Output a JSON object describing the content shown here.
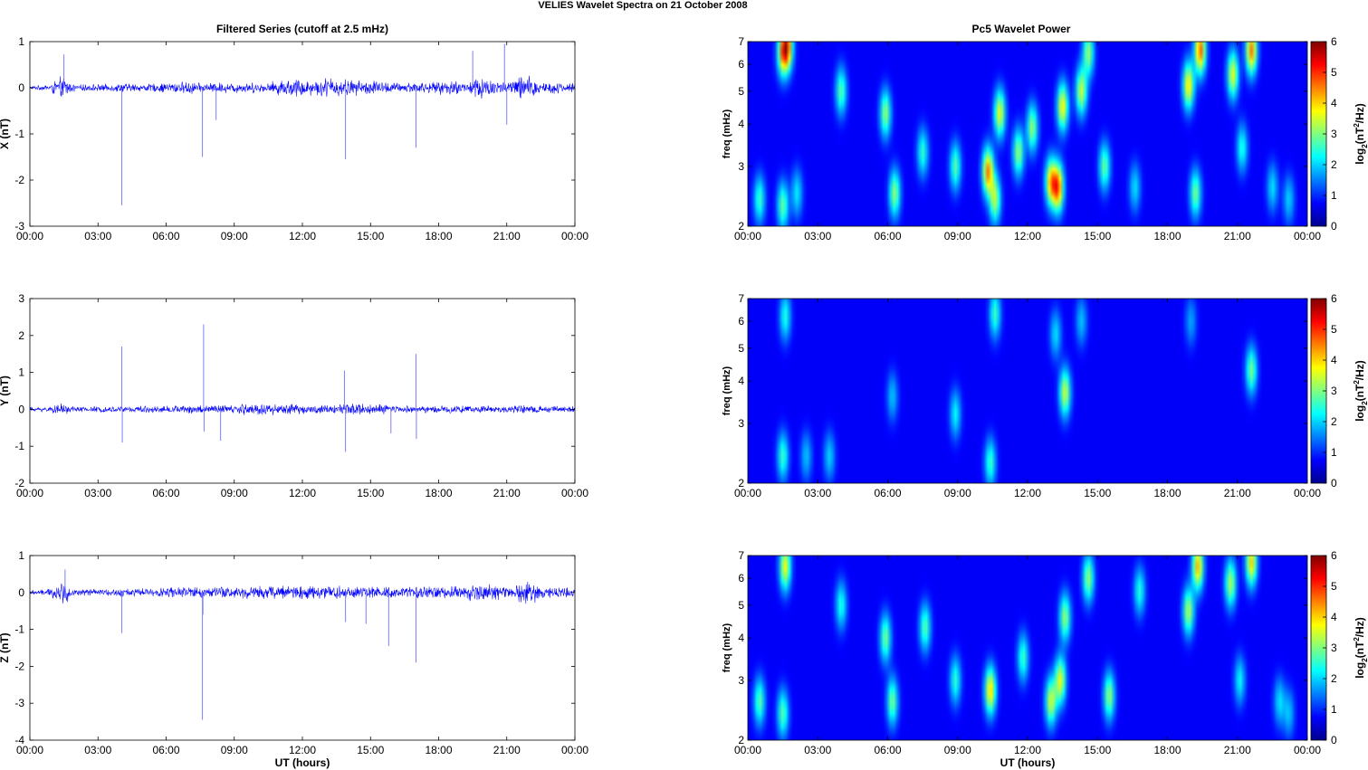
{
  "figure": {
    "suptitle": "VELIES Wavelet Spectra on 21 October   2008",
    "left_title": "Filtered Series (cutoff at 2.5 mHz)",
    "right_title": "Pc5 Wavelet Power"
  },
  "chart_data": [
    {
      "type": "line",
      "component": "X",
      "ylabel": "X (nT)",
      "xlabel": "",
      "xlim": [
        0,
        24
      ],
      "ylim": [
        -3,
        1
      ],
      "yticks": [
        -3,
        -2,
        -1,
        0,
        1
      ],
      "xticks": [
        "00:00",
        "03:00",
        "06:00",
        "09:00",
        "12:00",
        "15:00",
        "18:00",
        "21:00",
        "00:00"
      ],
      "line_color": "#0000ff",
      "noise_amplitude": [
        0.03,
        0.04,
        0.06,
        0.12,
        0.18,
        0.08,
        0.05,
        0.06,
        0.06,
        0.06,
        0.06,
        0.07,
        0.08,
        0.07,
        0.06,
        0.07,
        0.07,
        0.08,
        0.1,
        0.1,
        0.1,
        0.12,
        0.08,
        0.08,
        0.09,
        0.09,
        0.08,
        0.1,
        0.09,
        0.09,
        0.08,
        0.08,
        0.12,
        0.14,
        0.15,
        0.16,
        0.15,
        0.13,
        0.14,
        0.18,
        0.16,
        0.15,
        0.14,
        0.13,
        0.12,
        0.14,
        0.1,
        0.1,
        0.09,
        0.09,
        0.1,
        0.1,
        0.09,
        0.09,
        0.11,
        0.14,
        0.12,
        0.09,
        0.18,
        0.25,
        0.16,
        0.15,
        0.1,
        0.12,
        0.22,
        0.2,
        0.18,
        0.12,
        0.1,
        0.1,
        0.08,
        0.08
      ],
      "spikes": [
        {
          "t": 4.05,
          "v": -2.55
        },
        {
          "t": 7.6,
          "v": -1.5
        },
        {
          "t": 8.2,
          "v": -0.7
        },
        {
          "t": 13.9,
          "v": -1.55
        },
        {
          "t": 17.0,
          "v": -1.3
        },
        {
          "t": 1.5,
          "v": 0.72
        },
        {
          "t": 20.9,
          "v": 0.95
        },
        {
          "t": 21.0,
          "v": -0.8
        },
        {
          "t": 19.5,
          "v": 0.8
        }
      ]
    },
    {
      "type": "line",
      "component": "Y",
      "ylabel": "Y (nT)",
      "xlabel": "",
      "xlim": [
        0,
        24
      ],
      "ylim": [
        -2,
        3
      ],
      "yticks": [
        -2,
        -1,
        0,
        1,
        2,
        3
      ],
      "xticks": [
        "00:00",
        "03:00",
        "06:00",
        "09:00",
        "12:00",
        "15:00",
        "18:00",
        "21:00",
        "00:00"
      ],
      "line_color": "#0000ff",
      "noise_amplitude": [
        0.05,
        0.05,
        0.06,
        0.09,
        0.12,
        0.07,
        0.06,
        0.06,
        0.06,
        0.06,
        0.06,
        0.06,
        0.07,
        0.07,
        0.07,
        0.07,
        0.07,
        0.07,
        0.08,
        0.08,
        0.08,
        0.09,
        0.09,
        0.1,
        0.1,
        0.1,
        0.1,
        0.11,
        0.12,
        0.13,
        0.14,
        0.13,
        0.12,
        0.12,
        0.11,
        0.1,
        0.1,
        0.1,
        0.1,
        0.1,
        0.11,
        0.12,
        0.12,
        0.13,
        0.12,
        0.11,
        0.1,
        0.09,
        0.09,
        0.09,
        0.09,
        0.08,
        0.08,
        0.08,
        0.08,
        0.08,
        0.08,
        0.08,
        0.08,
        0.08,
        0.07,
        0.07,
        0.07,
        0.07,
        0.08,
        0.08,
        0.08,
        0.08,
        0.07,
        0.07,
        0.07,
        0.07
      ],
      "spikes": [
        {
          "t": 4.05,
          "v": 1.7
        },
        {
          "t": 4.07,
          "v": -0.9
        },
        {
          "t": 7.65,
          "v": 2.3
        },
        {
          "t": 7.67,
          "v": -0.6
        },
        {
          "t": 8.4,
          "v": -0.85
        },
        {
          "t": 13.85,
          "v": 1.05
        },
        {
          "t": 13.9,
          "v": -1.15
        },
        {
          "t": 17.0,
          "v": 1.5
        },
        {
          "t": 17.02,
          "v": -0.8
        },
        {
          "t": 15.9,
          "v": -0.65
        }
      ]
    },
    {
      "type": "line",
      "component": "Z",
      "ylabel": "Z (nT)",
      "xlabel": "UT (hours)",
      "xlim": [
        0,
        24
      ],
      "ylim": [
        -4,
        1
      ],
      "yticks": [
        -4,
        -3,
        -2,
        -1,
        0,
        1
      ],
      "xticks": [
        "00:00",
        "03:00",
        "06:00",
        "09:00",
        "12:00",
        "15:00",
        "18:00",
        "21:00",
        "00:00"
      ],
      "line_color": "#0000ff",
      "noise_amplitude": [
        0.05,
        0.06,
        0.08,
        0.16,
        0.22,
        0.1,
        0.07,
        0.07,
        0.07,
        0.07,
        0.07,
        0.08,
        0.09,
        0.09,
        0.08,
        0.09,
        0.09,
        0.1,
        0.11,
        0.11,
        0.12,
        0.13,
        0.12,
        0.12,
        0.13,
        0.13,
        0.12,
        0.14,
        0.15,
        0.15,
        0.14,
        0.13,
        0.15,
        0.16,
        0.16,
        0.17,
        0.16,
        0.15,
        0.15,
        0.17,
        0.16,
        0.14,
        0.13,
        0.12,
        0.12,
        0.12,
        0.11,
        0.11,
        0.1,
        0.1,
        0.11,
        0.12,
        0.13,
        0.13,
        0.12,
        0.14,
        0.13,
        0.12,
        0.18,
        0.24,
        0.18,
        0.16,
        0.12,
        0.14,
        0.22,
        0.24,
        0.2,
        0.16,
        0.13,
        0.12,
        0.11,
        0.1
      ],
      "spikes": [
        {
          "t": 4.05,
          "v": -1.1
        },
        {
          "t": 7.6,
          "v": -3.45
        },
        {
          "t": 7.62,
          "v": -0.6
        },
        {
          "t": 13.9,
          "v": -0.8
        },
        {
          "t": 14.8,
          "v": -0.85
        },
        {
          "t": 15.8,
          "v": -1.45
        },
        {
          "t": 17.0,
          "v": -1.9
        },
        {
          "t": 1.55,
          "v": 0.62
        }
      ]
    },
    {
      "type": "heatmap",
      "component": "X",
      "ylabel": "freq (mHz)",
      "xlabel": "",
      "colorbar_label": "log2(nT2/Hz)",
      "yscale": "log",
      "xlim": [
        0,
        24
      ],
      "ylim": [
        2,
        7
      ],
      "yticks": [
        2,
        3,
        4,
        5,
        6,
        7
      ],
      "clim": [
        0,
        6
      ],
      "cticks": [
        0,
        1,
        2,
        3,
        4,
        5,
        6
      ],
      "xticks": [
        "00:00",
        "03:00",
        "06:00",
        "09:00",
        "12:00",
        "15:00",
        "18:00",
        "21:00",
        "00:00"
      ],
      "blobs": [
        {
          "t": 0.5,
          "f": 2.4,
          "p": 2.0
        },
        {
          "t": 1.5,
          "f": 2.3,
          "p": 2.3
        },
        {
          "t": 1.5,
          "f": 6.5,
          "p": 3.5
        },
        {
          "t": 1.7,
          "f": 6.8,
          "p": 3.8
        },
        {
          "t": 2.1,
          "f": 2.5,
          "p": 1.5
        },
        {
          "t": 4.0,
          "f": 5.0,
          "p": 2.2
        },
        {
          "t": 5.9,
          "f": 4.3,
          "p": 2.6
        },
        {
          "t": 6.3,
          "f": 2.5,
          "p": 2.6
        },
        {
          "t": 7.5,
          "f": 3.3,
          "p": 1.9
        },
        {
          "t": 8.9,
          "f": 3.0,
          "p": 2.2
        },
        {
          "t": 10.3,
          "f": 2.9,
          "p": 4.1
        },
        {
          "t": 10.6,
          "f": 2.4,
          "p": 2.8
        },
        {
          "t": 10.8,
          "f": 4.3,
          "p": 3.2
        },
        {
          "t": 11.6,
          "f": 3.3,
          "p": 2.6
        },
        {
          "t": 12.2,
          "f": 3.9,
          "p": 2.6
        },
        {
          "t": 13.0,
          "f": 2.7,
          "p": 3.6
        },
        {
          "t": 13.3,
          "f": 2.6,
          "p": 4.3
        },
        {
          "t": 13.5,
          "f": 4.5,
          "p": 3.4
        },
        {
          "t": 14.3,
          "f": 5.0,
          "p": 3.0
        },
        {
          "t": 14.6,
          "f": 6.5,
          "p": 2.6
        },
        {
          "t": 15.3,
          "f": 3.0,
          "p": 2.3
        },
        {
          "t": 16.6,
          "f": 2.6,
          "p": 1.4
        },
        {
          "t": 18.9,
          "f": 5.2,
          "p": 3.5
        },
        {
          "t": 19.2,
          "f": 2.5,
          "p": 2.4
        },
        {
          "t": 19.4,
          "f": 6.6,
          "p": 4.4
        },
        {
          "t": 20.8,
          "f": 5.6,
          "p": 3.2
        },
        {
          "t": 21.6,
          "f": 6.6,
          "p": 4.2
        },
        {
          "t": 21.2,
          "f": 3.4,
          "p": 1.8
        },
        {
          "t": 22.5,
          "f": 2.6,
          "p": 1.4
        },
        {
          "t": 23.2,
          "f": 2.4,
          "p": 1.3
        }
      ]
    },
    {
      "type": "heatmap",
      "component": "Y",
      "ylabel": "freq (mHz)",
      "xlabel": "",
      "colorbar_label": "log2(nT2/Hz)",
      "yscale": "log",
      "xlim": [
        0,
        24
      ],
      "ylim": [
        2,
        7
      ],
      "yticks": [
        2,
        3,
        4,
        5,
        6,
        7
      ],
      "clim": [
        0,
        6
      ],
      "cticks": [
        0,
        1,
        2,
        3,
        4,
        5,
        6
      ],
      "xticks": [
        "00:00",
        "03:00",
        "06:00",
        "09:00",
        "12:00",
        "15:00",
        "18:00",
        "21:00",
        "00:00"
      ],
      "blobs": [
        {
          "t": 1.5,
          "f": 2.4,
          "p": 2.0
        },
        {
          "t": 1.6,
          "f": 6.2,
          "p": 1.8
        },
        {
          "t": 2.5,
          "f": 2.4,
          "p": 1.2
        },
        {
          "t": 3.5,
          "f": 2.4,
          "p": 1.3
        },
        {
          "t": 6.2,
          "f": 3.6,
          "p": 1.2
        },
        {
          "t": 8.9,
          "f": 3.2,
          "p": 1.6
        },
        {
          "t": 10.4,
          "f": 2.3,
          "p": 2.0
        },
        {
          "t": 10.6,
          "f": 6.3,
          "p": 2.0
        },
        {
          "t": 13.2,
          "f": 5.5,
          "p": 1.4
        },
        {
          "t": 13.6,
          "f": 3.7,
          "p": 3.0
        },
        {
          "t": 14.3,
          "f": 6.0,
          "p": 1.2
        },
        {
          "t": 21.6,
          "f": 4.3,
          "p": 2.4
        },
        {
          "t": 19.0,
          "f": 6.0,
          "p": 1.0
        }
      ]
    },
    {
      "type": "heatmap",
      "component": "Z",
      "ylabel": "freq (mHz)",
      "xlabel": "UT (hours)",
      "colorbar_label": "log2(nT2/Hz)",
      "yscale": "log",
      "xlim": [
        0,
        24
      ],
      "ylim": [
        2,
        7
      ],
      "yticks": [
        2,
        3,
        4,
        5,
        6,
        7
      ],
      "clim": [
        0,
        6
      ],
      "cticks": [
        0,
        1,
        2,
        3,
        4,
        5,
        6
      ],
      "xticks": [
        "00:00",
        "03:00",
        "06:00",
        "09:00",
        "12:00",
        "15:00",
        "18:00",
        "21:00",
        "00:00"
      ],
      "blobs": [
        {
          "t": 0.5,
          "f": 2.6,
          "p": 2.2
        },
        {
          "t": 1.5,
          "f": 2.4,
          "p": 2.2
        },
        {
          "t": 1.6,
          "f": 6.5,
          "p": 3.3
        },
        {
          "t": 4.0,
          "f": 5.0,
          "p": 1.8
        },
        {
          "t": 5.9,
          "f": 4.0,
          "p": 2.4
        },
        {
          "t": 6.2,
          "f": 2.6,
          "p": 2.4
        },
        {
          "t": 7.6,
          "f": 4.3,
          "p": 2.2
        },
        {
          "t": 8.9,
          "f": 3.0,
          "p": 1.9
        },
        {
          "t": 10.4,
          "f": 2.8,
          "p": 3.6
        },
        {
          "t": 11.8,
          "f": 3.5,
          "p": 2.0
        },
        {
          "t": 13.0,
          "f": 2.6,
          "p": 3.0
        },
        {
          "t": 13.4,
          "f": 3.0,
          "p": 3.2
        },
        {
          "t": 13.6,
          "f": 4.6,
          "p": 2.6
        },
        {
          "t": 14.6,
          "f": 6.0,
          "p": 2.6
        },
        {
          "t": 15.5,
          "f": 2.7,
          "p": 2.6
        },
        {
          "t": 16.8,
          "f": 5.5,
          "p": 1.8
        },
        {
          "t": 18.9,
          "f": 4.8,
          "p": 2.8
        },
        {
          "t": 19.3,
          "f": 6.5,
          "p": 3.8
        },
        {
          "t": 20.7,
          "f": 5.8,
          "p": 2.8
        },
        {
          "t": 21.6,
          "f": 6.7,
          "p": 3.6
        },
        {
          "t": 21.1,
          "f": 3.0,
          "p": 1.6
        },
        {
          "t": 22.8,
          "f": 2.6,
          "p": 1.4
        },
        {
          "t": 23.2,
          "f": 2.4,
          "p": 1.2
        }
      ]
    }
  ]
}
